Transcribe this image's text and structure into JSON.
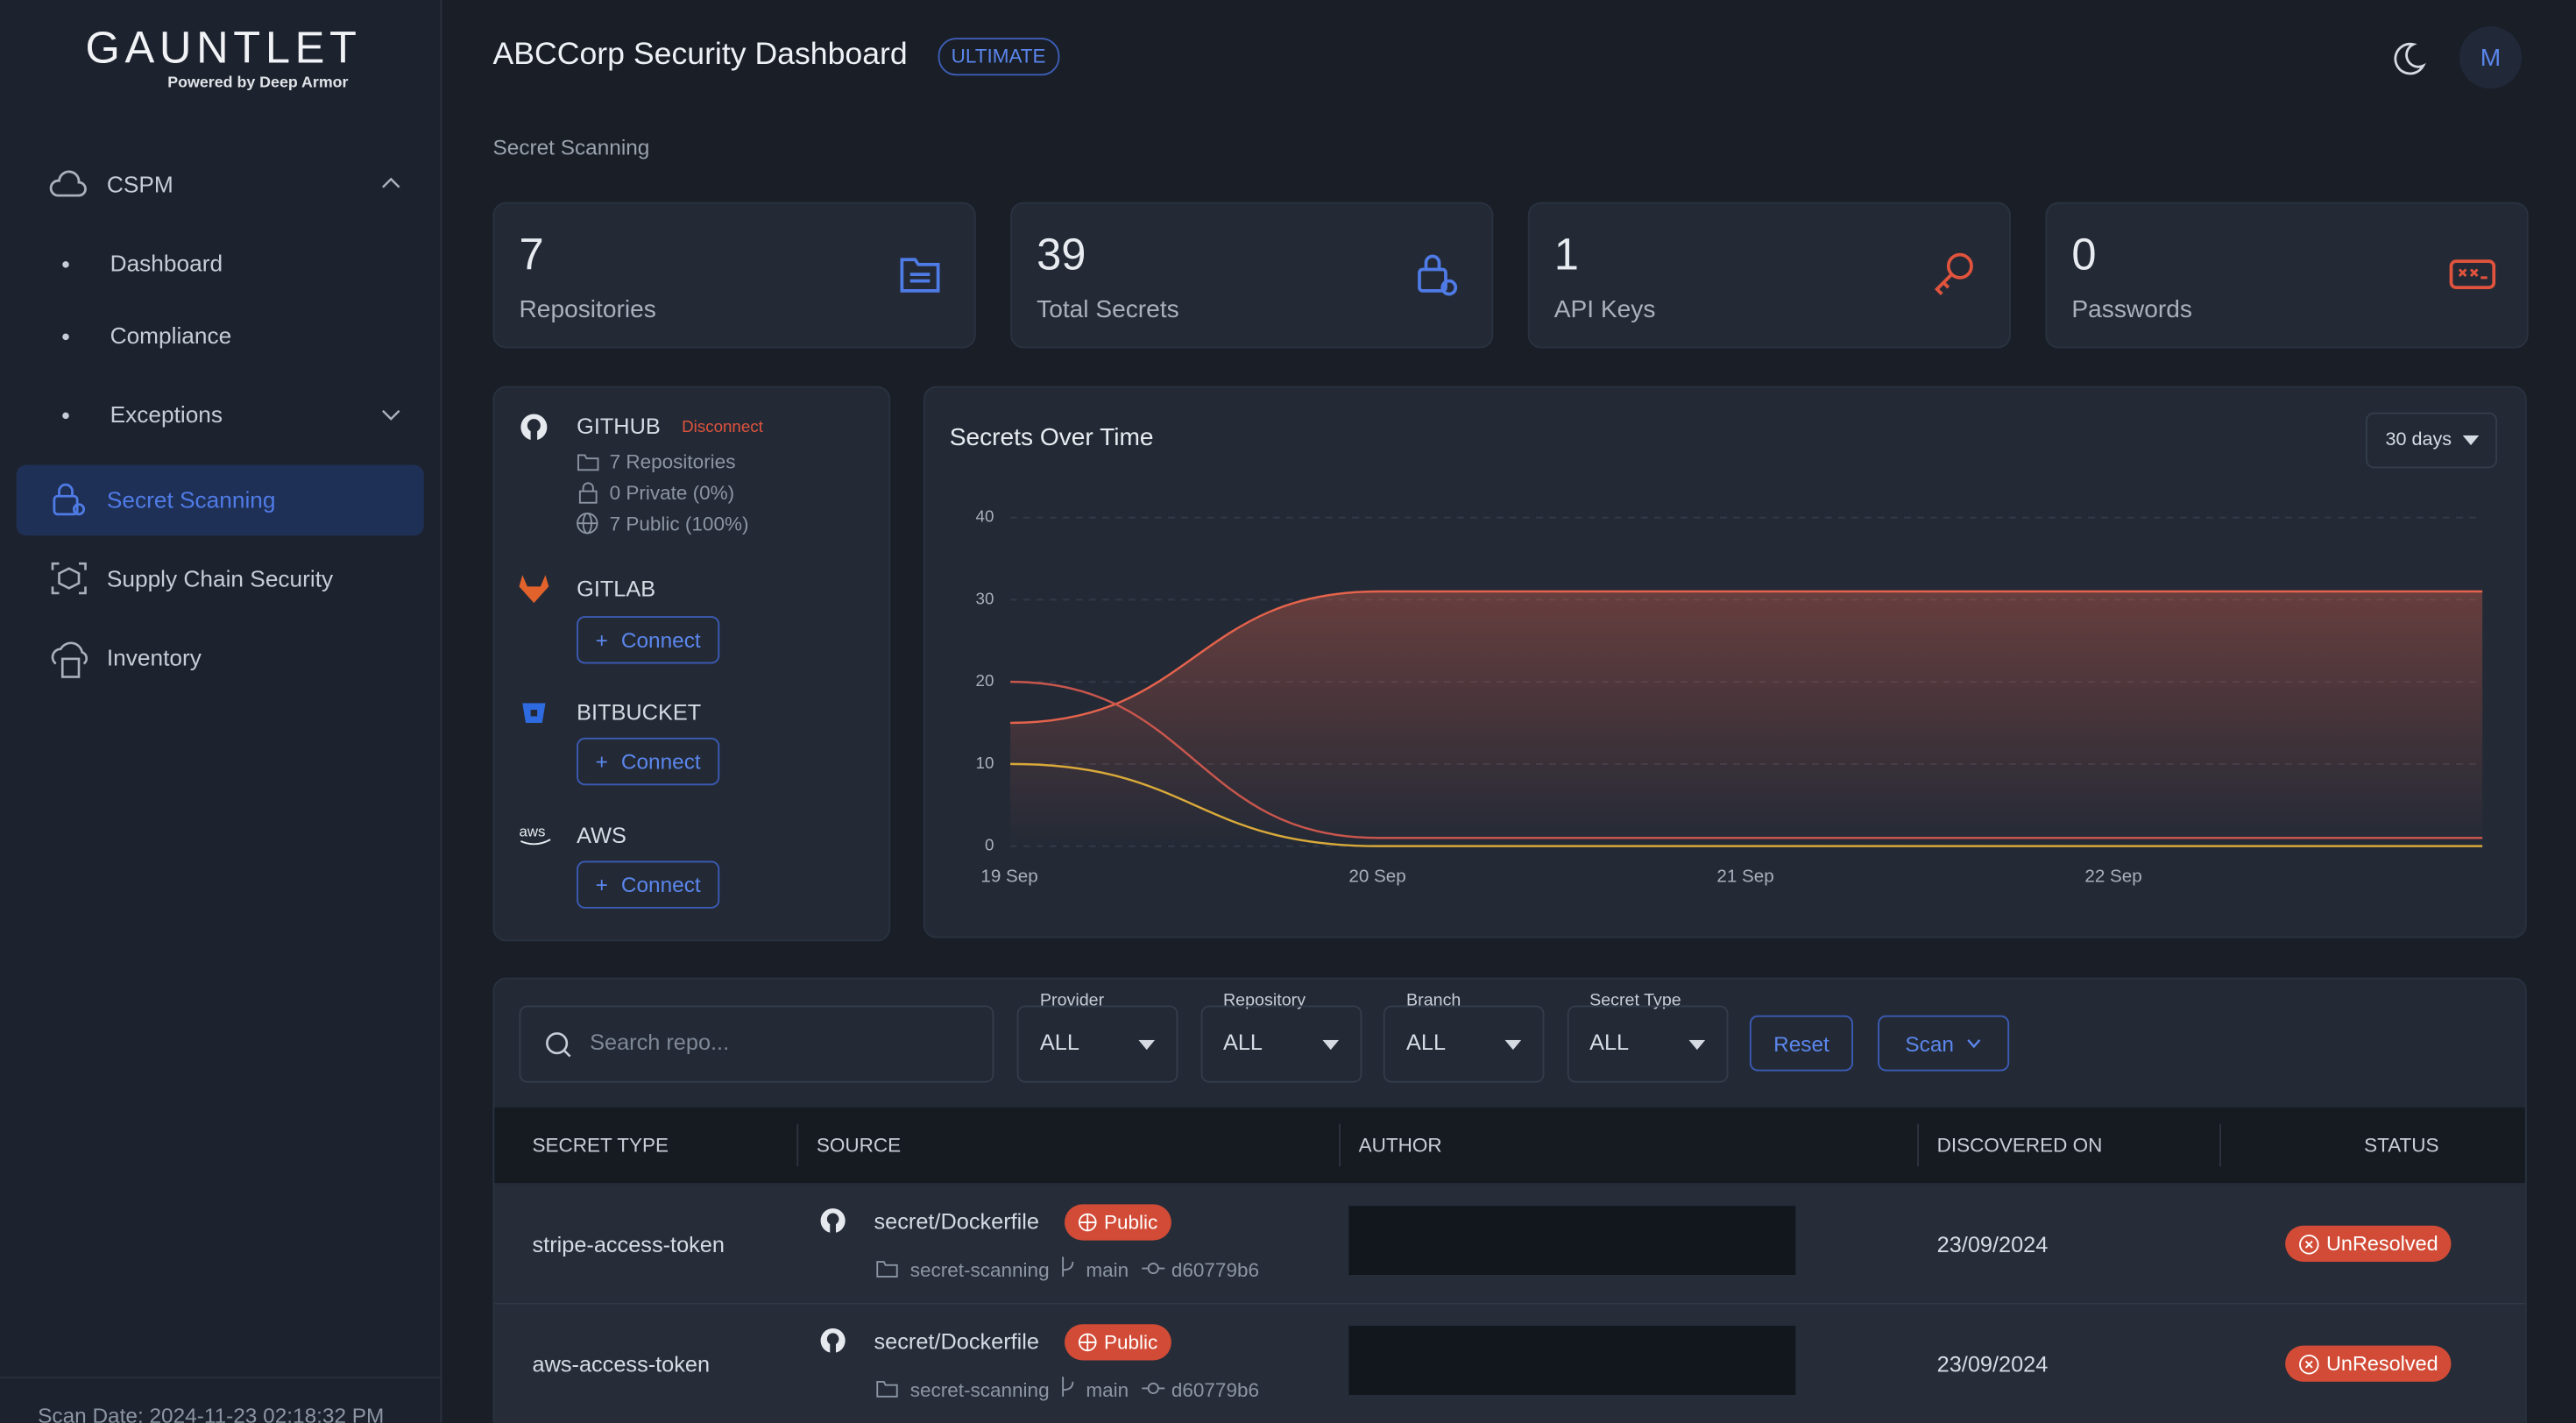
{
  "header": {
    "logo": "GAUNTLET",
    "logo_sub": "Powered by Deep Armor",
    "title": "ABCCorp Security Dashboard",
    "badge": "ULTIMATE",
    "avatar": "M"
  },
  "sidebar": {
    "cspm": "CSPM",
    "sub": [
      "Dashboard",
      "Compliance",
      "Exceptions"
    ],
    "items": [
      "Secret Scanning",
      "Supply Chain Security",
      "Inventory"
    ],
    "footer": "Scan Date: 2024-11-23 02:18:32 PM"
  },
  "breadcrumb": "Secret Scanning",
  "stats": [
    {
      "value": 7,
      "label": "Repositories"
    },
    {
      "value": 39,
      "label": "Total Secrets"
    },
    {
      "value": 1,
      "label": "API Keys"
    },
    {
      "value": 0,
      "label": "Passwords"
    }
  ],
  "providers": [
    {
      "name": "GITHUB",
      "action": "Disconnect",
      "details": [
        "7 Repositories",
        "0 Private (0%)",
        "7 Public (100%)"
      ]
    },
    {
      "name": "GITLAB",
      "action": "Connect"
    },
    {
      "name": "BITBUCKET",
      "action": "Connect"
    },
    {
      "name": "AWS",
      "action": "Connect"
    }
  ],
  "chart_controls": {
    "period": "30 days"
  },
  "chart_data": {
    "type": "line",
    "title": "Secrets Over Time",
    "categories": [
      "19 Sep",
      "20 Sep",
      "21 Sep",
      "22 Sep",
      null
    ],
    "series": [
      {
        "color": "#e5634c",
        "area": true,
        "values": [
          15,
          31,
          31,
          31,
          31
        ]
      },
      {
        "color": "#c9564d",
        "values": [
          20,
          1,
          1,
          1,
          1
        ]
      },
      {
        "color": "#d9a93a",
        "values": [
          10,
          0,
          0,
          0,
          0
        ]
      }
    ],
    "ylim": [
      0,
      40
    ],
    "yticks": [
      0,
      10,
      20,
      30,
      40
    ],
    "grid": true
  },
  "filters": {
    "search_placeholder": "Search repo...",
    "selects": [
      {
        "label": "Provider",
        "value": "ALL"
      },
      {
        "label": "Repository",
        "value": "ALL"
      },
      {
        "label": "Branch",
        "value": "ALL"
      },
      {
        "label": "Secret Type",
        "value": "ALL"
      }
    ],
    "reset": "Reset",
    "scan": "Scan"
  },
  "table": {
    "columns": [
      "SECRET TYPE",
      "SOURCE",
      "AUTHOR",
      "DISCOVERED ON",
      "STATUS"
    ],
    "rows": [
      {
        "type": "stripe-access-token",
        "file": "secret/Dockerfile",
        "visibility": "Public",
        "repo": "secret-scanning",
        "branch": "main",
        "commit": "d60779b6",
        "date": "23/09/2024",
        "status": "UnResolved"
      },
      {
        "type": "aws-access-token",
        "file": "secret/Dockerfile",
        "visibility": "Public",
        "repo": "secret-scanning",
        "branch": "main",
        "commit": "d60779b6",
        "date": "23/09/2024",
        "status": "UnResolved"
      }
    ]
  }
}
